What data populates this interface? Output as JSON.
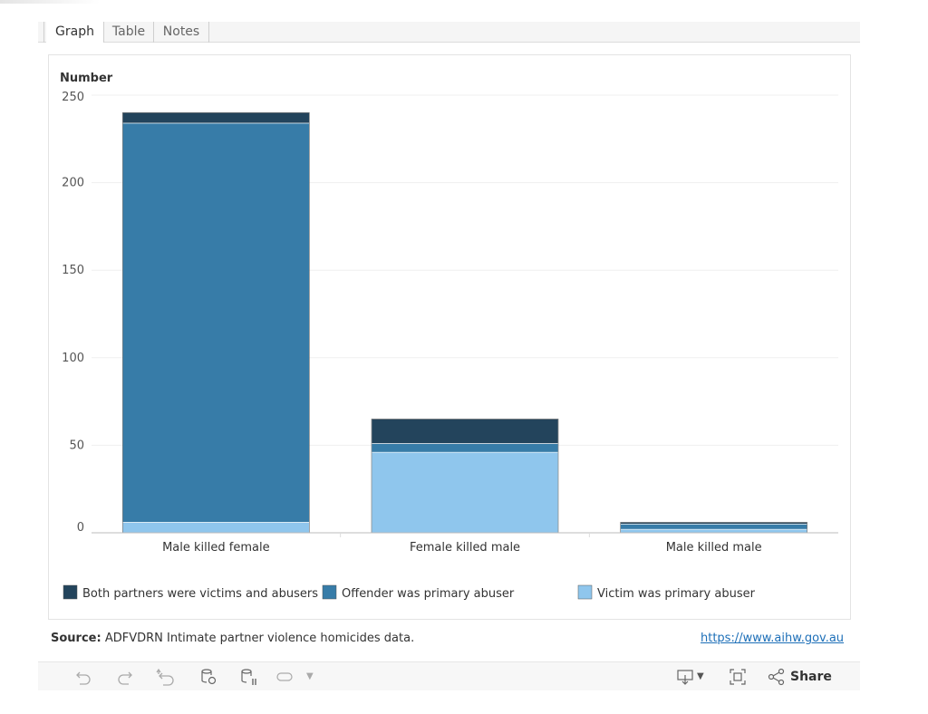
{
  "tabs": [
    {
      "label": "Graph",
      "active": true
    },
    {
      "label": "Table",
      "active": false
    },
    {
      "label": "Notes",
      "active": false
    }
  ],
  "chart_data": {
    "type": "bar",
    "stacked": true,
    "ylabel": "Number",
    "ylim": [
      0,
      250
    ],
    "yticks": [
      0,
      50,
      100,
      150,
      200,
      250
    ],
    "categories": [
      "Male killed female",
      "Female killed male",
      "Male killed male"
    ],
    "series": [
      {
        "name": "Victim was primary abuser",
        "color": "#8fc6ed",
        "values": [
          6,
          46,
          2
        ]
      },
      {
        "name": "Offender was primary abuser",
        "color": "#377ca8",
        "values": [
          228,
          5,
          3
        ]
      },
      {
        "name": "Both partners were victims and abusers",
        "color": "#23445c",
        "values": [
          6,
          14,
          1
        ]
      }
    ],
    "legend": [
      {
        "name": "Both partners were victims and abusers",
        "color": "#23445c"
      },
      {
        "name": "Offender was primary abuser",
        "color": "#377ca8"
      },
      {
        "name": "Victim was primary abuser",
        "color": "#8fc6ed"
      }
    ],
    "legend_position": "bottom",
    "grid": true
  },
  "source": {
    "label": "Source:",
    "text": "ADFVDRN Intimate partner violence homicides data.",
    "link": "https://www.aihw.gov.au"
  },
  "toolbar": {
    "share_label": "Share",
    "icons": [
      "undo-icon",
      "redo-icon",
      "revert-icon",
      "refresh-icon",
      "pause-icon",
      "toggle-icon",
      "download-icon",
      "fullscreen-icon",
      "share-icon"
    ]
  }
}
